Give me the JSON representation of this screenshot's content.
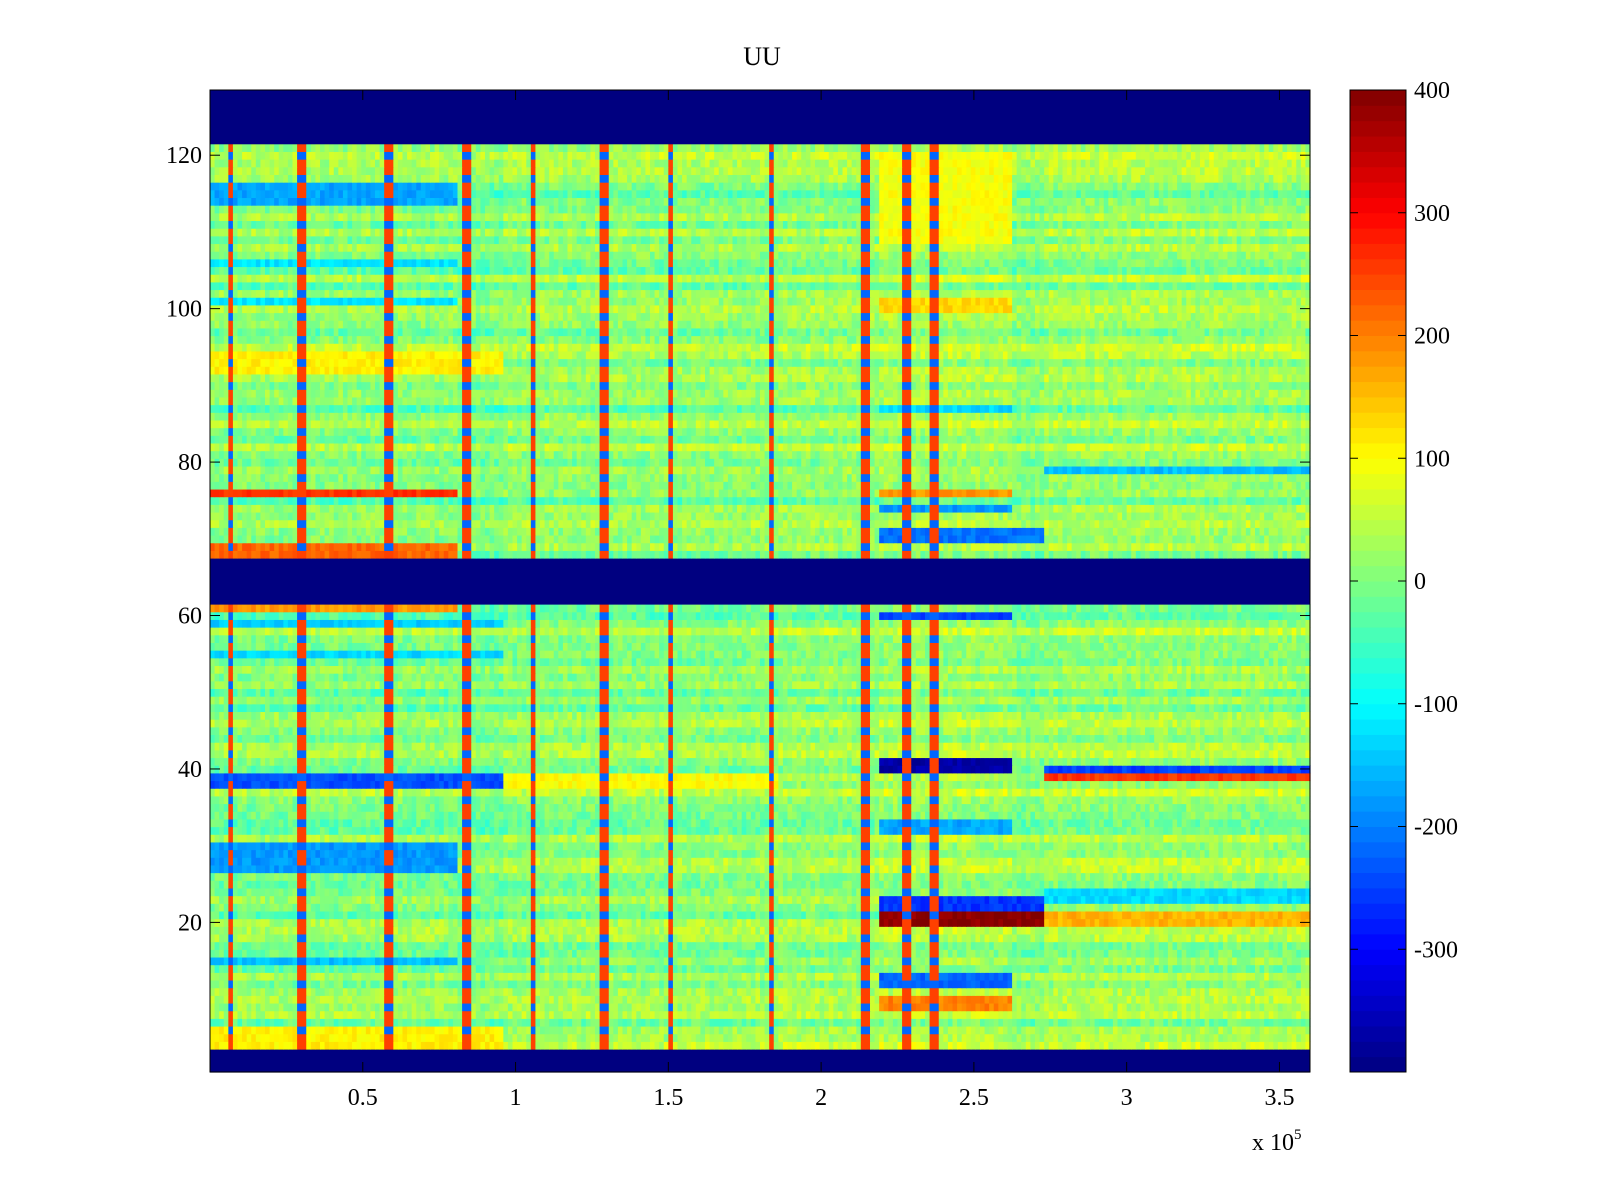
{
  "chart_data": {
    "type": "heatmap",
    "title": "UU",
    "xlabel": "",
    "ylabel": "",
    "x_multiplier_label": "x 10",
    "x_multiplier_exponent": "5",
    "xlim": [
      0,
      360000
    ],
    "ylim": [
      0.5,
      128.5
    ],
    "x_ticks": [
      {
        "value": 50000,
        "label": "0.5"
      },
      {
        "value": 100000,
        "label": "1"
      },
      {
        "value": 150000,
        "label": "1.5"
      },
      {
        "value": 200000,
        "label": "2"
      },
      {
        "value": 250000,
        "label": "2.5"
      },
      {
        "value": 300000,
        "label": "3"
      },
      {
        "value": 350000,
        "label": "3.5"
      }
    ],
    "y_ticks": [
      {
        "value": 20,
        "label": "20"
      },
      {
        "value": 40,
        "label": "40"
      },
      {
        "value": 60,
        "label": "60"
      },
      {
        "value": 80,
        "label": "80"
      },
      {
        "value": 100,
        "label": "100"
      },
      {
        "value": 120,
        "label": "120"
      }
    ],
    "colormap": "jet",
    "clim": [
      -400,
      400
    ],
    "colorbar": {
      "ticks": [
        {
          "value": 400,
          "label": "400"
        },
        {
          "value": 300,
          "label": "300"
        },
        {
          "value": 200,
          "label": "200"
        },
        {
          "value": 100,
          "label": "100"
        },
        {
          "value": 0,
          "label": "0"
        },
        {
          "value": -100,
          "label": "-100"
        },
        {
          "value": -200,
          "label": "-200"
        },
        {
          "value": -300,
          "label": "-300"
        }
      ]
    },
    "masked_rows": [
      [
        1,
        3
      ],
      [
        62,
        67
      ],
      [
        122,
        128
      ]
    ],
    "time_segments": [
      {
        "x": [
          0,
          80000
        ],
        "base": 5
      },
      {
        "x": [
          80000,
          95000
        ],
        "base": -5
      },
      {
        "x": [
          95000,
          185000
        ],
        "base": 10
      },
      {
        "x": [
          185000,
          218000
        ],
        "base": 15
      },
      {
        "x": [
          218000,
          262000
        ],
        "base": 25
      },
      {
        "x": [
          262000,
          272000
        ],
        "base": 5
      },
      {
        "x": [
          272000,
          360000
        ],
        "base": 20
      }
    ],
    "row_bands": [
      {
        "rows": [
          4,
          6
        ],
        "x": [
          0,
          95000
        ],
        "value": 110
      },
      {
        "rows": [
          15,
          15
        ],
        "x": [
          0,
          80000
        ],
        "value": -150
      },
      {
        "rows": [
          20,
          21
        ],
        "x": [
          218000,
          272000
        ],
        "value": 390
      },
      {
        "rows": [
          22,
          23
        ],
        "x": [
          218000,
          272000
        ],
        "value": -260
      },
      {
        "rows": [
          20,
          21
        ],
        "x": [
          272000,
          360000
        ],
        "value": 160
      },
      {
        "rows": [
          23,
          24
        ],
        "x": [
          272000,
          360000
        ],
        "value": -130
      },
      {
        "rows": [
          12,
          13
        ],
        "x": [
          218000,
          262000
        ],
        "value": -220
      },
      {
        "rows": [
          9,
          10
        ],
        "x": [
          218000,
          262000
        ],
        "value": 200
      },
      {
        "rows": [
          27,
          30
        ],
        "x": [
          0,
          80000
        ],
        "value": -180
      },
      {
        "rows": [
          32,
          33
        ],
        "x": [
          218000,
          262000
        ],
        "value": -170
      },
      {
        "rows": [
          38,
          39
        ],
        "x": [
          0,
          95000
        ],
        "value": -240
      },
      {
        "rows": [
          40,
          41
        ],
        "x": [
          218000,
          262000
        ],
        "value": -370
      },
      {
        "rows": [
          40,
          40
        ],
        "x": [
          272000,
          360000
        ],
        "value": -250
      },
      {
        "rows": [
          39,
          39
        ],
        "x": [
          272000,
          360000
        ],
        "value": 260
      },
      {
        "rows": [
          38,
          39
        ],
        "x": [
          95000,
          185000
        ],
        "value": 100
      },
      {
        "rows": [
          55,
          55
        ],
        "x": [
          0,
          95000
        ],
        "value": -130
      },
      {
        "rows": [
          59,
          59
        ],
        "x": [
          0,
          95000
        ],
        "value": -140
      },
      {
        "rows": [
          61,
          61
        ],
        "x": [
          0,
          80000
        ],
        "value": 180
      },
      {
        "rows": [
          60,
          60
        ],
        "x": [
          218000,
          262000
        ],
        "value": -250
      },
      {
        "rows": [
          76,
          76
        ],
        "x": [
          0,
          80000
        ],
        "value": 260
      },
      {
        "rows": [
          68,
          69
        ],
        "x": [
          0,
          80000
        ],
        "value": 220
      },
      {
        "rows": [
          70,
          71
        ],
        "x": [
          218000,
          272000
        ],
        "value": -210
      },
      {
        "rows": [
          76,
          76
        ],
        "x": [
          218000,
          262000
        ],
        "value": 180
      },
      {
        "rows": [
          74,
          74
        ],
        "x": [
          218000,
          262000
        ],
        "value": -180
      },
      {
        "rows": [
          79,
          79
        ],
        "x": [
          272000,
          360000
        ],
        "value": -150
      },
      {
        "rows": [
          87,
          87
        ],
        "x": [
          218000,
          262000
        ],
        "value": -130
      },
      {
        "rows": [
          92,
          94
        ],
        "x": [
          0,
          95000
        ],
        "value": 110
      },
      {
        "rows": [
          100,
          101
        ],
        "x": [
          218000,
          262000
        ],
        "value": 130
      },
      {
        "rows": [
          114,
          116
        ],
        "x": [
          0,
          80000
        ],
        "value": -170
      },
      {
        "rows": [
          101,
          101
        ],
        "x": [
          0,
          80000
        ],
        "value": -120
      },
      {
        "rows": [
          106,
          106
        ],
        "x": [
          0,
          80000
        ],
        "value": -120
      },
      {
        "rows": [
          109,
          120
        ],
        "x": [
          218000,
          262000
        ],
        "value": 95
      }
    ],
    "spike_columns": [
      6000,
      29000,
      58000,
      83000,
      105000,
      128000,
      150000,
      183000,
      214000,
      227000,
      236000
    ]
  }
}
